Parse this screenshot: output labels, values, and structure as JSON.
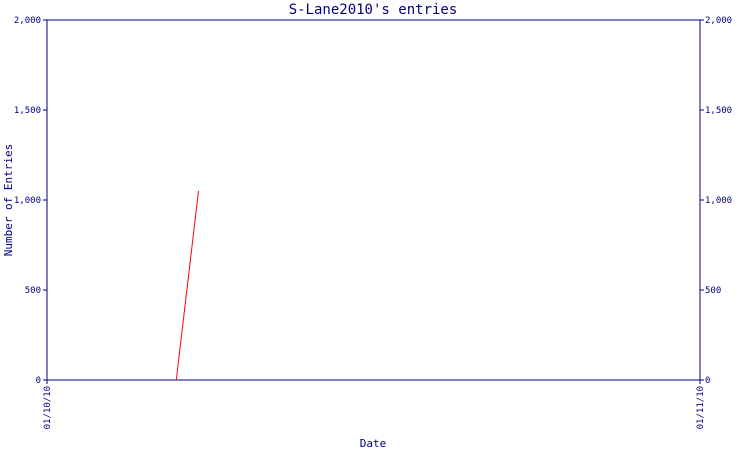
{
  "chart_data": {
    "type": "line",
    "title": "S-Lane2010's entries",
    "xlabel": "Date",
    "ylabel": "Number of Entries",
    "ylim": [
      0,
      2000
    ],
    "y_ticks": [
      {
        "value": 0,
        "label": "0"
      },
      {
        "value": 500,
        "label": "500"
      },
      {
        "value": 1000,
        "label": "1,000"
      },
      {
        "value": 1500,
        "label": "1,500"
      },
      {
        "value": 2000,
        "label": "2,000"
      }
    ],
    "x_ticks": [
      {
        "value": 0,
        "label": "01/10/10"
      },
      {
        "value": 1,
        "label": "01/11/10"
      }
    ],
    "xlim": [
      0,
      1
    ],
    "grid": false,
    "series": [
      {
        "color": "#ff0000",
        "points": [
          {
            "x": 0.198,
            "y": 0
          },
          {
            "x": 0.232,
            "y": 1050
          }
        ]
      }
    ]
  }
}
